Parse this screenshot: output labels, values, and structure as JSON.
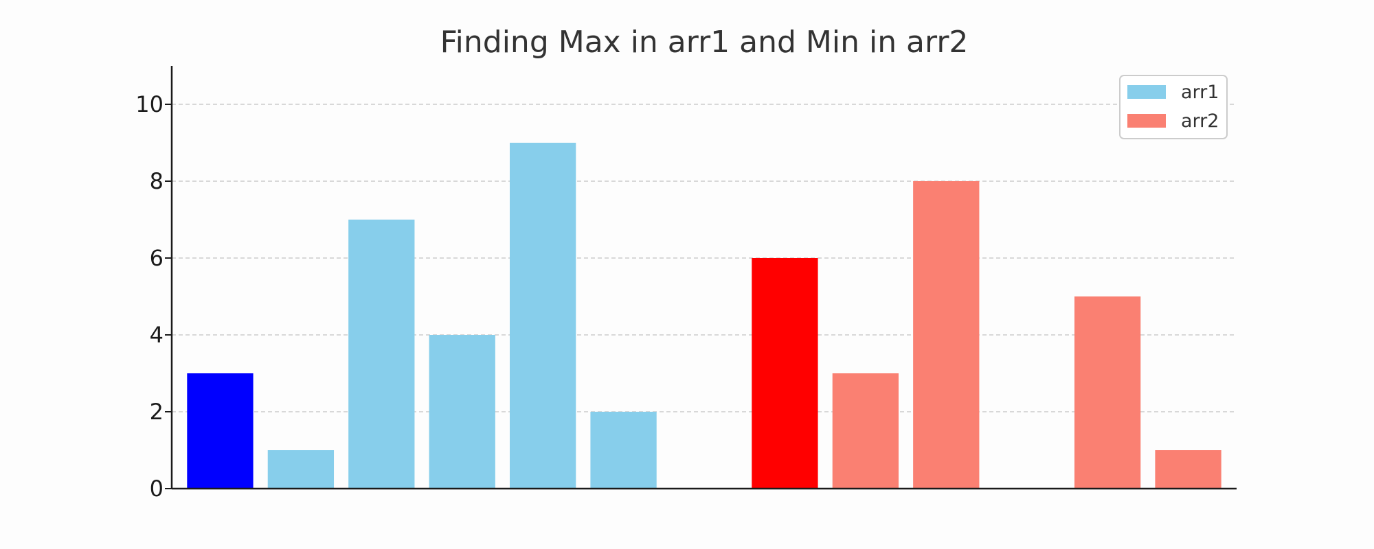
{
  "chart_data": {
    "type": "bar",
    "title": "Finding Max in arr1 and Min in arr2",
    "xlabel": "",
    "ylabel": "",
    "ylim": [
      0,
      11
    ],
    "yticks": [
      0,
      2,
      4,
      6,
      8,
      10
    ],
    "grid": "horizontal dashed",
    "legend_position": "top-right",
    "x_positions": [
      0,
      1,
      2,
      3,
      4,
      5,
      6,
      7,
      8,
      9,
      10,
      11,
      12
    ],
    "series": [
      {
        "name": "arr1",
        "color": "#87ceeb",
        "x": [
          0,
          1,
          2,
          3,
          4,
          5
        ],
        "values": [
          3,
          1,
          7,
          4,
          9,
          2
        ],
        "highlight_index": 0,
        "highlight_color": "#0000ff"
      },
      {
        "name": "arr2",
        "color": "#fa8072",
        "x": [
          7,
          8,
          9,
          10,
          11,
          12
        ],
        "values": [
          6,
          3,
          8,
          0,
          5,
          1
        ],
        "highlight_index": 0,
        "highlight_color": "#ff0000"
      }
    ]
  }
}
